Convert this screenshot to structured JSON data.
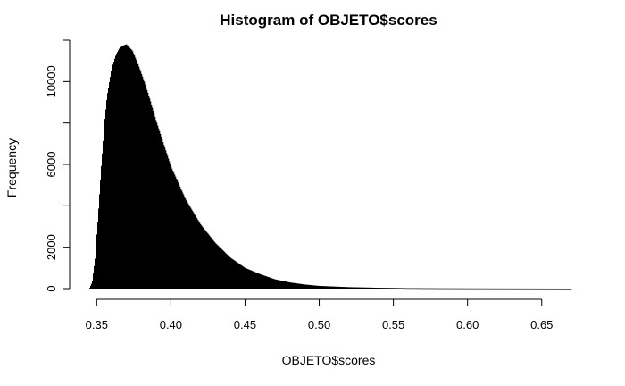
{
  "chart_data": {
    "type": "histogram",
    "title": "Histogram of OBJETO$scores",
    "xlabel": "OBJETO$scores",
    "ylabel": "Frequency",
    "xlim": [
      0.345,
      0.67
    ],
    "ylim": [
      0,
      12000
    ],
    "x_ticks": [
      0.35,
      0.4,
      0.45,
      0.5,
      0.55,
      0.6,
      0.65
    ],
    "x_tick_labels": [
      "0.35",
      "0.40",
      "0.45",
      "0.50",
      "0.55",
      "0.60",
      "0.65"
    ],
    "y_ticks": [
      0,
      2000,
      6000,
      10000
    ],
    "y_tick_labels": [
      "0",
      "2000",
      "6000",
      "10000"
    ],
    "bar_color": "#000000",
    "grid": false,
    "density_points": [
      [
        0.345,
        0
      ],
      [
        0.347,
        300
      ],
      [
        0.349,
        1500
      ],
      [
        0.351,
        3500
      ],
      [
        0.353,
        5800
      ],
      [
        0.355,
        7800
      ],
      [
        0.357,
        9300
      ],
      [
        0.36,
        10600
      ],
      [
        0.363,
        11300
      ],
      [
        0.366,
        11700
      ],
      [
        0.37,
        11800
      ],
      [
        0.374,
        11500
      ],
      [
        0.378,
        10800
      ],
      [
        0.382,
        10000
      ],
      [
        0.386,
        9100
      ],
      [
        0.39,
        8100
      ],
      [
        0.395,
        7000
      ],
      [
        0.4,
        5900
      ],
      [
        0.41,
        4300
      ],
      [
        0.42,
        3100
      ],
      [
        0.43,
        2200
      ],
      [
        0.44,
        1500
      ],
      [
        0.45,
        1000
      ],
      [
        0.46,
        700
      ],
      [
        0.47,
        450
      ],
      [
        0.48,
        300
      ],
      [
        0.49,
        200
      ],
      [
        0.5,
        130
      ],
      [
        0.52,
        70
      ],
      [
        0.54,
        40
      ],
      [
        0.56,
        20
      ],
      [
        0.58,
        12
      ],
      [
        0.6,
        8
      ],
      [
        0.62,
        5
      ],
      [
        0.64,
        3
      ],
      [
        0.67,
        0
      ]
    ]
  }
}
